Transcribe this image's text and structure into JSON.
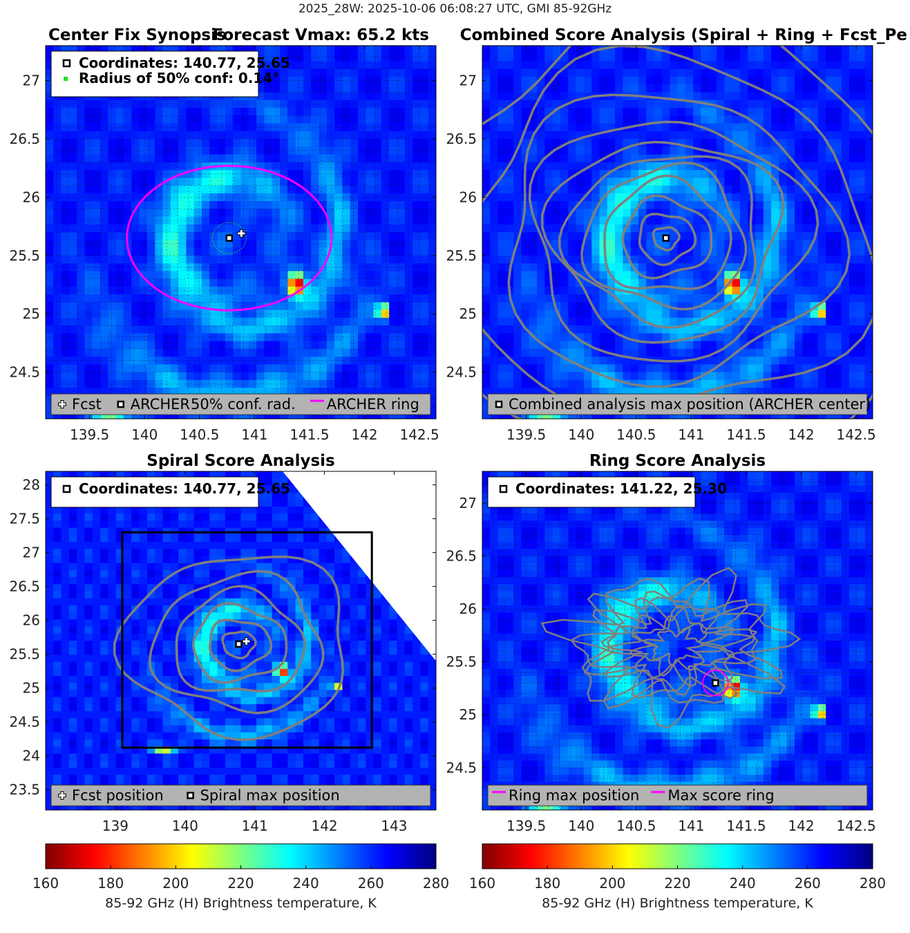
{
  "figure_title": "2025_28W: 2025-10-06 06:08:27 UTC, GMI 85-92GHz",
  "colors": {
    "archer_ring": "#ff00ff",
    "conf_circle": "#22dd22",
    "contour": "#7f7f7f",
    "legend_bg": "#b3b3b3",
    "box": "#000000"
  },
  "chart_data": [
    {
      "type": "heatmap",
      "title": "Center Fix Synopsis",
      "subtitle": "Forecast Vmax: 65.2 kts",
      "xlim": [
        139.1,
        142.65
      ],
      "ylim": [
        24.1,
        27.3
      ],
      "xticks": [
        139.5,
        140,
        140.5,
        141,
        141.5,
        142,
        142.5
      ],
      "xtick_labels": [
        "139.5",
        "140",
        "140.5",
        "141",
        "141.5",
        "142",
        "142.5"
      ],
      "yticks": [
        24.5,
        25,
        25.5,
        26,
        26.5,
        27
      ],
      "ytick_labels": [
        "24.5",
        "25",
        "25.5",
        "26",
        "26.5",
        "27"
      ],
      "grid": true,
      "info_lines": [
        "Coordinates: 140.77, 25.65",
        "Radius of 50% conf: 0.14°"
      ],
      "legend": [
        "Fcst",
        "ARCHER",
        "50% conf. rad.",
        "ARCHER ring"
      ],
      "legend_placement": "bottom",
      "archer_center": [
        140.77,
        25.65
      ],
      "fcst_position": [
        140.88,
        25.69
      ],
      "conf_radius_deg": 0.14,
      "archer_ring_radius_deg": 0.62
    },
    {
      "type": "heatmap",
      "title": "Combined Score Analysis (Spiral + Ring + Fcst_Pe",
      "xlim": [
        139.1,
        142.65
      ],
      "ylim": [
        24.1,
        27.3
      ],
      "xticks": [
        139.5,
        140,
        140.5,
        141,
        141.5,
        142,
        142.5
      ],
      "xtick_labels": [
        "139.5",
        "140",
        "140.5",
        "141",
        "141.5",
        "142",
        "142.5"
      ],
      "yticks": [
        24.5,
        25,
        25.5,
        26,
        26.5,
        27
      ],
      "ytick_labels": [
        "24.5",
        "25",
        "25.5",
        "26",
        "26.5",
        "27"
      ],
      "grid": false,
      "legend": [
        "Combined analysis max position (ARCHER center)"
      ],
      "legend_placement": "bottom",
      "max_position": [
        140.77,
        25.65
      ]
    },
    {
      "type": "heatmap",
      "title": "Spiral Score Analysis",
      "xlim": [
        138.0,
        143.6
      ],
      "ylim": [
        23.2,
        28.2
      ],
      "xticks": [
        139,
        140,
        141,
        142,
        143
      ],
      "xtick_labels": [
        "139",
        "140",
        "141",
        "142",
        "143"
      ],
      "yticks": [
        23.5,
        24,
        24.5,
        25,
        25.5,
        26,
        26.5,
        27,
        27.5,
        28
      ],
      "ytick_labels": [
        "23.5",
        "24",
        "24.5",
        "25",
        "25.5",
        "26",
        "26.5",
        "27",
        "27.5",
        "28"
      ],
      "grid": false,
      "info_lines": [
        "Coordinates: 140.77, 25.65"
      ],
      "legend": [
        "Fcst position",
        "Spiral max position"
      ],
      "legend_placement": "bottom",
      "max_position": [
        140.77,
        25.65
      ],
      "fcst_position": [
        140.88,
        25.69
      ],
      "search_box": {
        "x": [
          139.1,
          142.68
        ],
        "y": [
          24.12,
          27.3
        ]
      }
    },
    {
      "type": "heatmap",
      "title": "Ring Score Analysis",
      "xlim": [
        139.1,
        142.65
      ],
      "ylim": [
        24.1,
        27.3
      ],
      "xticks": [
        139.5,
        140,
        140.5,
        141,
        141.5,
        142,
        142.5
      ],
      "xtick_labels": [
        "139.5",
        "140",
        "140.5",
        "141",
        "141.5",
        "142",
        "142.5"
      ],
      "yticks": [
        24.5,
        25,
        25.5,
        26,
        26.5,
        27
      ],
      "ytick_labels": [
        "24.5",
        "25",
        "25.5",
        "26",
        "26.5",
        "27"
      ],
      "grid": true,
      "info_lines": [
        "Coordinates: 141.22, 25.30"
      ],
      "legend": [
        "Ring max position",
        "Max score ring"
      ],
      "legend_placement": "bottom",
      "max_position": [
        141.22,
        25.3
      ],
      "ring_radius_deg": 0.12
    }
  ],
  "colorbars": [
    {
      "label": "85-92 GHz (H) Brightness temperature, K",
      "ticks": [
        160,
        180,
        200,
        220,
        240,
        260,
        280
      ],
      "tick_labels": [
        "160",
        "180",
        "200",
        "220",
        "240",
        "260",
        "280"
      ],
      "range": [
        160,
        280
      ],
      "colormap": "jet-reversed"
    },
    {
      "label": "85-92 GHz (H) Brightness temperature, K",
      "ticks": [
        160,
        180,
        200,
        220,
        240,
        260,
        280
      ],
      "tick_labels": [
        "160",
        "180",
        "200",
        "220",
        "240",
        "260",
        "280"
      ],
      "range": [
        160,
        280
      ],
      "colormap": "jet-reversed"
    }
  ]
}
